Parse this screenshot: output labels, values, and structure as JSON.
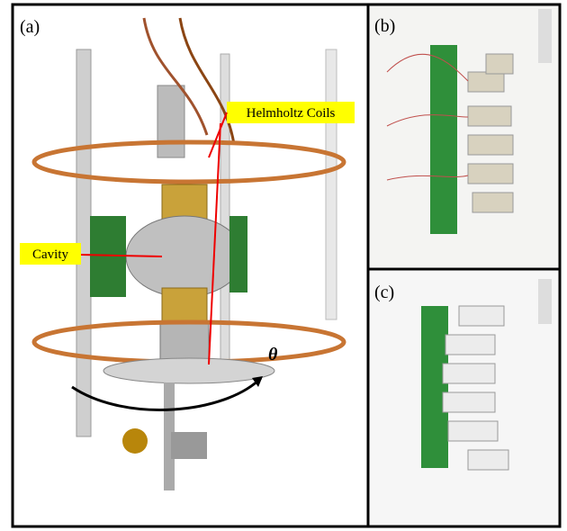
{
  "panels": [
    {
      "label": "(a)"
    },
    {
      "label": "(b)"
    },
    {
      "label": "(c)"
    }
  ],
  "annotations": {
    "helmholtz": "Helmholtz Coils",
    "cavity": "Cavity",
    "angle": "θ"
  }
}
